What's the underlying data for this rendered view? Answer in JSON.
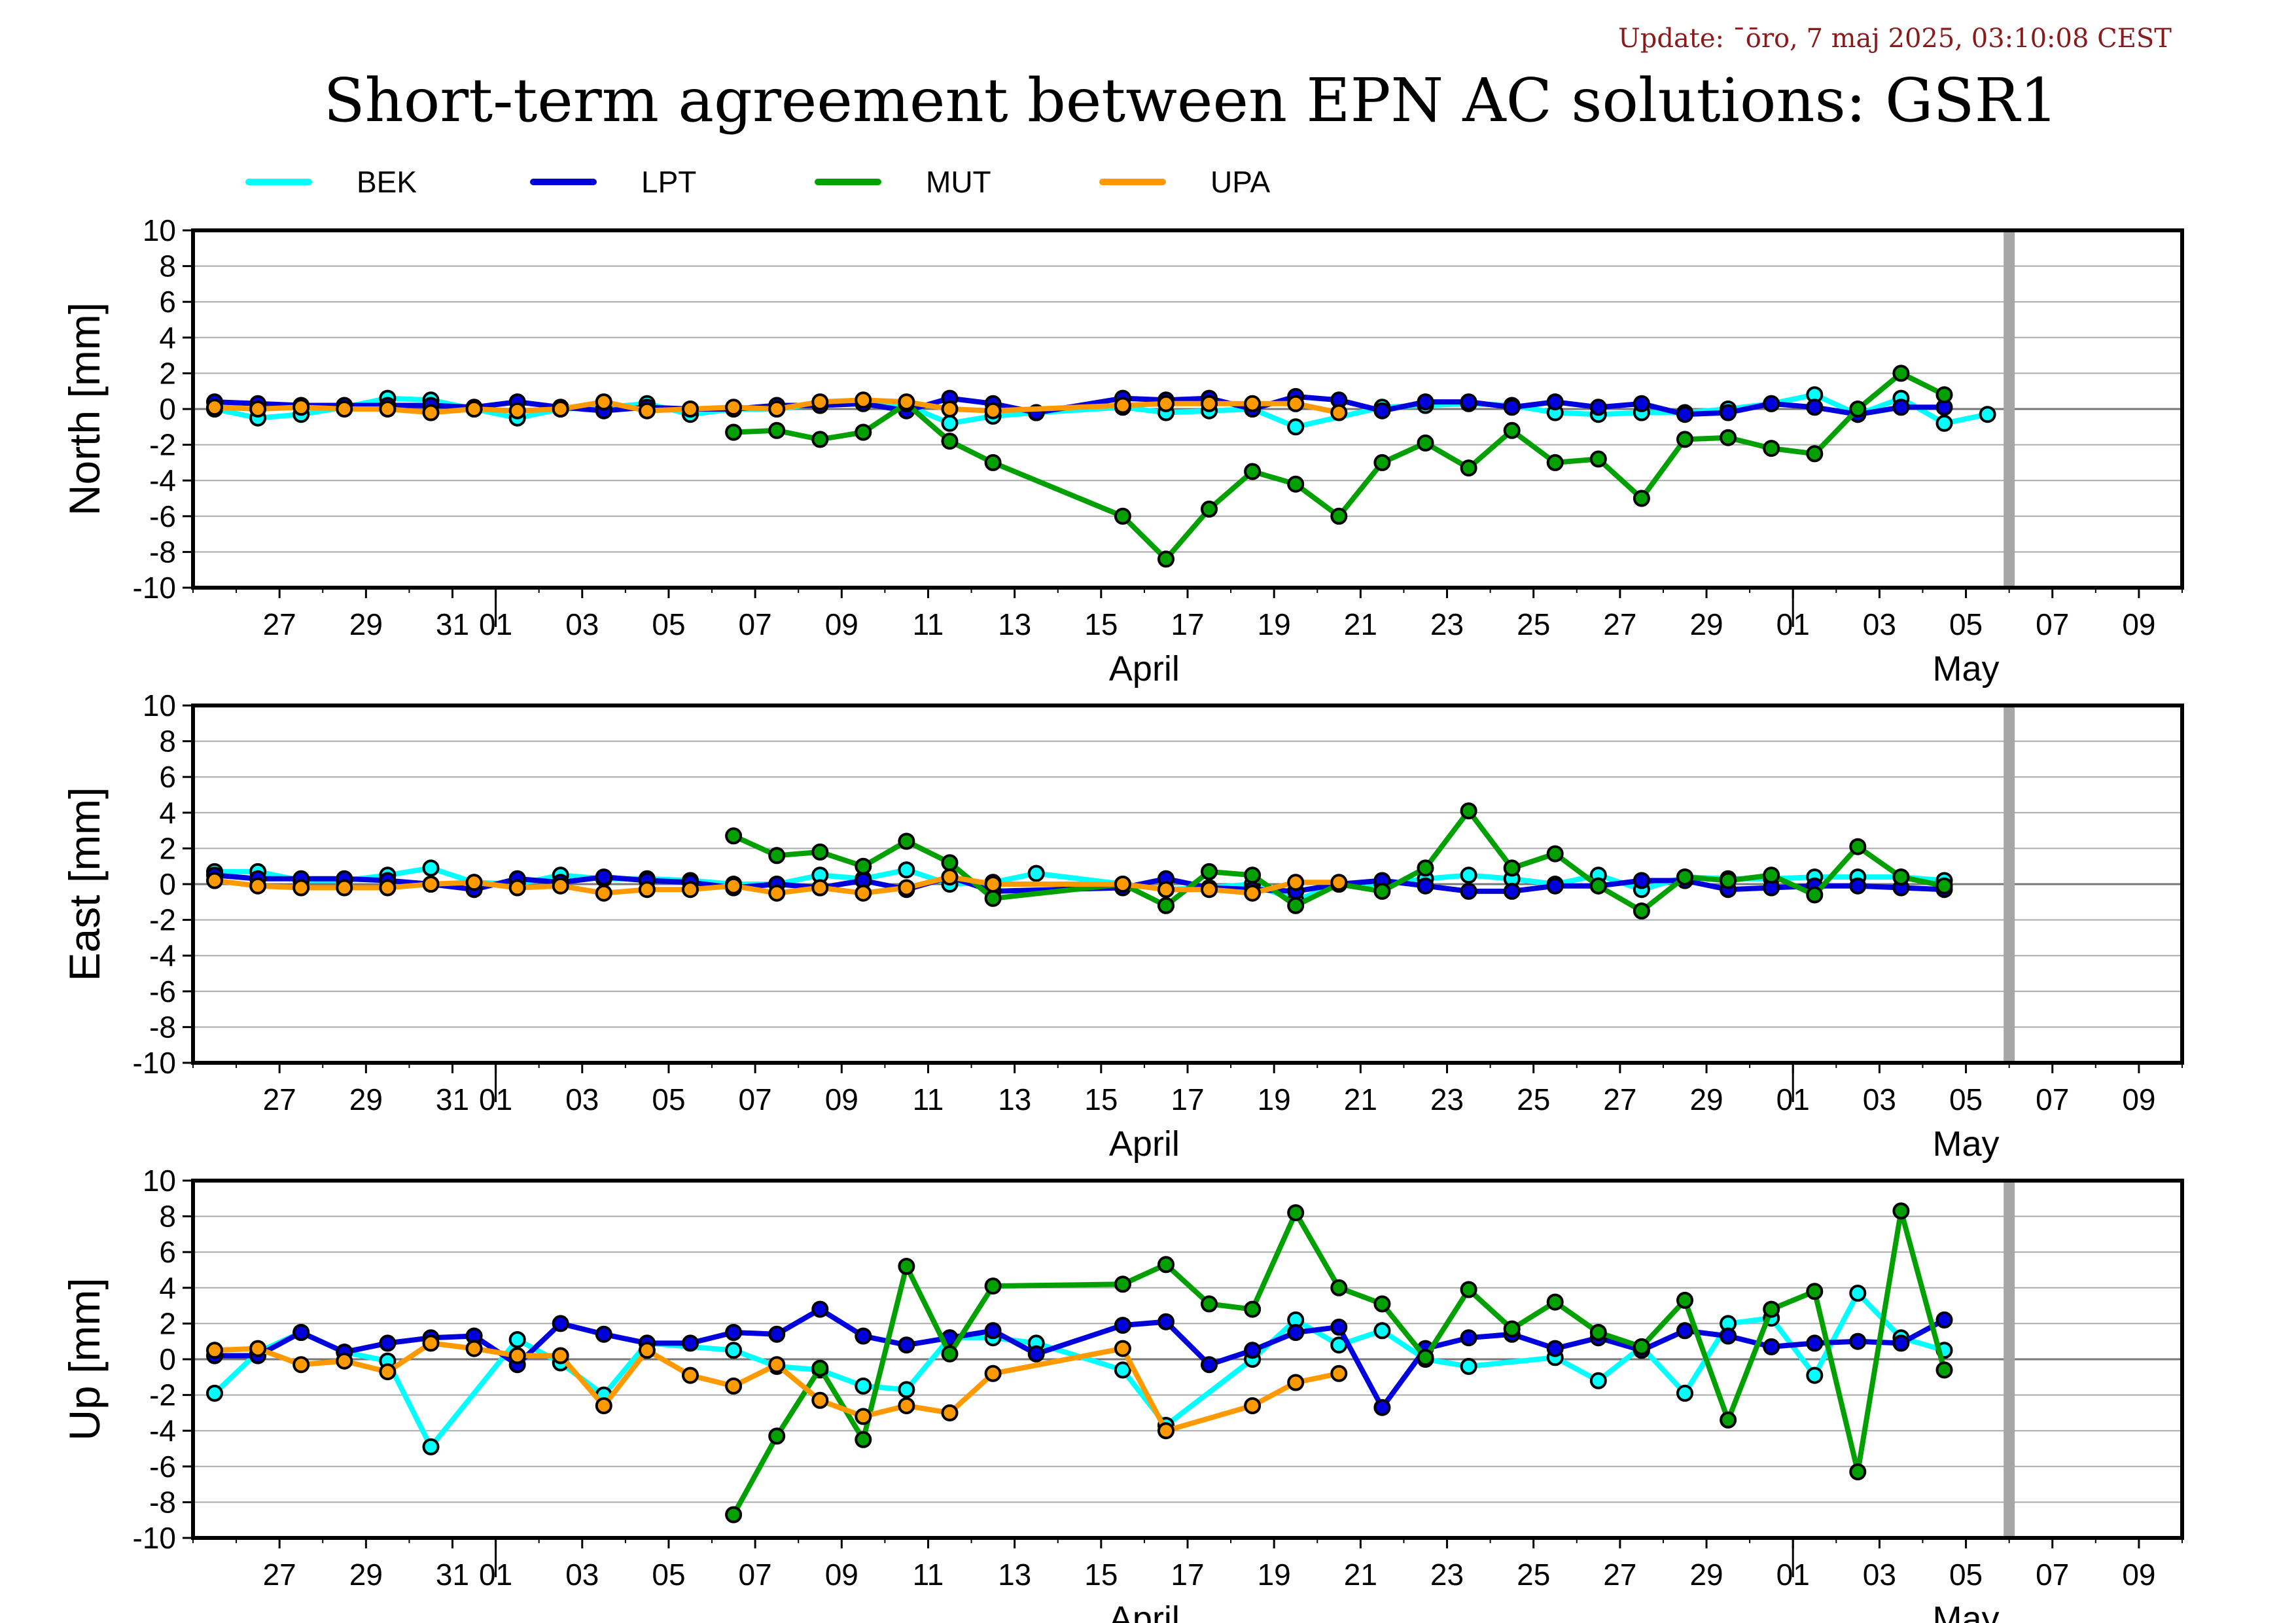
{
  "header": {
    "update": "Update: ¯ōro, 7 maj 2025, 03:10:08 CEST",
    "title": "Short-term agreement between EPN AC solutions: GSR1"
  },
  "chart_data": {
    "type": "line",
    "x_unit": "date",
    "xlim": [
      "2025-03-25",
      "2025-05-10"
    ],
    "ylim": [
      -10,
      10
    ],
    "yticks": [
      -10,
      -8,
      -6,
      -4,
      -2,
      0,
      2,
      4,
      6,
      8,
      10
    ],
    "grid": true,
    "legend_placement": "top",
    "xtick_labels": [
      {
        "x": "2025-03-27",
        "label": "27"
      },
      {
        "x": "2025-03-29",
        "label": "29"
      },
      {
        "x": "2025-03-31",
        "label": "31"
      },
      {
        "x": "2025-04-01",
        "label": "01"
      },
      {
        "x": "2025-04-03",
        "label": "03"
      },
      {
        "x": "2025-04-05",
        "label": "05"
      },
      {
        "x": "2025-04-07",
        "label": "07"
      },
      {
        "x": "2025-04-09",
        "label": "09"
      },
      {
        "x": "2025-04-11",
        "label": "11"
      },
      {
        "x": "2025-04-13",
        "label": "13"
      },
      {
        "x": "2025-04-15",
        "label": "15"
      },
      {
        "x": "2025-04-17",
        "label": "17"
      },
      {
        "x": "2025-04-19",
        "label": "19"
      },
      {
        "x": "2025-04-21",
        "label": "21"
      },
      {
        "x": "2025-04-23",
        "label": "23"
      },
      {
        "x": "2025-04-25",
        "label": "25"
      },
      {
        "x": "2025-04-27",
        "label": "27"
      },
      {
        "x": "2025-04-29",
        "label": "29"
      },
      {
        "x": "2025-05-01",
        "label": "01"
      },
      {
        "x": "2025-05-03",
        "label": "03"
      },
      {
        "x": "2025-05-05",
        "label": "05"
      },
      {
        "x": "2025-05-07",
        "label": "07"
      },
      {
        "x": "2025-05-09",
        "label": "09"
      }
    ],
    "month_labels": [
      {
        "x": "2025-04-16",
        "label": "April"
      },
      {
        "x": "2025-05-05",
        "label": "May"
      }
    ],
    "month_boundaries": [
      "2025-04-01",
      "2025-05-01"
    ],
    "current_marker": "2025-05-06",
    "series_styles": [
      {
        "name": "BEK",
        "color": "#00ffff"
      },
      {
        "name": "LPT",
        "color": "#0000dd"
      },
      {
        "name": "MUT",
        "color": "#00a000"
      },
      {
        "name": "UPA",
        "color": "#ff9900"
      }
    ],
    "start_date": "2025-03-25",
    "panels": [
      {
        "ylabel": "North [mm]",
        "series": [
          {
            "name": "BEK",
            "values": [
              0.0,
              -0.5,
              -0.3,
              0.1,
              0.6,
              0.5,
              0.0,
              -0.5,
              0.0,
              0.1,
              0.3,
              -0.3,
              0.0,
              0.0,
              0.3,
              0.4,
              0.2,
              -0.8,
              -0.4,
              -0.2,
              null,
              0.1,
              -0.2,
              -0.1,
              0.0,
              -1.0,
              null,
              0.1,
              0.2,
              0.3,
              0.2,
              -0.2,
              -0.3,
              -0.2,
              -0.2,
              0.0,
              0.3,
              0.8,
              -0.3,
              0.6,
              -0.8,
              -0.3
            ]
          },
          {
            "name": "LPT",
            "values": [
              0.4,
              0.3,
              0.2,
              0.2,
              0.2,
              0.2,
              0.1,
              0.4,
              0.1,
              -0.1,
              0.1,
              0.0,
              0.0,
              0.2,
              0.2,
              0.3,
              -0.1,
              0.6,
              0.3,
              -0.2,
              null,
              0.6,
              0.5,
              0.6,
              0.0,
              0.7,
              0.5,
              -0.1,
              0.4,
              0.4,
              0.1,
              0.4,
              0.1,
              0.3,
              -0.3,
              -0.2,
              0.3,
              0.1,
              -0.3,
              0.1,
              0.1
            ]
          },
          {
            "name": "MUT",
            "values": [
              null,
              null,
              null,
              null,
              null,
              null,
              null,
              null,
              null,
              null,
              null,
              null,
              -1.3,
              -1.2,
              -1.7,
              -1.3,
              0.3,
              -1.8,
              -3.0,
              null,
              null,
              -6.0,
              -8.4,
              -5.6,
              -3.5,
              -4.2,
              -6.0,
              -3.0,
              -1.9,
              -3.3,
              -1.2,
              -3.0,
              -2.8,
              -5.0,
              -1.7,
              -1.6,
              -2.2,
              -2.5,
              0.0,
              2.0,
              0.8
            ]
          },
          {
            "name": "UPA",
            "values": [
              0.1,
              0.0,
              0.1,
              0.0,
              0.0,
              -0.2,
              0.0,
              -0.1,
              0.0,
              0.4,
              -0.1,
              0.0,
              0.1,
              0.0,
              0.4,
              0.5,
              0.4,
              0.0,
              -0.1,
              null,
              null,
              0.2,
              0.3,
              0.3,
              0.3,
              0.3,
              -0.2
            ]
          }
        ]
      },
      {
        "ylabel": "East [mm]",
        "series": [
          {
            "name": "BEK",
            "values": [
              0.7,
              0.7,
              0.2,
              0.2,
              0.5,
              0.9,
              0.1,
              0.0,
              0.5,
              0.3,
              0.3,
              0.2,
              0.0,
              0.0,
              0.5,
              0.3,
              0.8,
              0.0,
              0.1,
              0.6,
              null,
              0.0,
              -0.3,
              -0.2,
              0.0,
              -0.9,
              0.0,
              0.0,
              0.3,
              0.5,
              0.3,
              0.0,
              0.5,
              -0.3,
              0.4,
              0.3,
              0.3,
              0.4,
              0.4,
              0.4,
              0.2
            ]
          },
          {
            "name": "LPT",
            "values": [
              0.5,
              0.3,
              0.3,
              0.3,
              0.2,
              0.0,
              -0.3,
              0.3,
              0.1,
              0.4,
              0.2,
              0.1,
              -0.2,
              0.0,
              -0.2,
              0.2,
              -0.3,
              0.4,
              -0.4,
              null,
              null,
              -0.2,
              0.3,
              -0.2,
              -0.3,
              -0.4,
              0.0,
              0.2,
              -0.1,
              -0.4,
              -0.4,
              -0.1,
              -0.1,
              0.2,
              0.2,
              -0.3,
              -0.2,
              -0.1,
              -0.1,
              -0.2,
              -0.3
            ]
          },
          {
            "name": "MUT",
            "values": [
              null,
              null,
              null,
              null,
              null,
              null,
              null,
              null,
              null,
              null,
              null,
              null,
              2.7,
              1.6,
              1.8,
              1.0,
              2.4,
              1.2,
              -0.8,
              null,
              null,
              0.0,
              -1.2,
              0.7,
              0.5,
              -1.2,
              0.0,
              -0.4,
              0.9,
              4.1,
              0.9,
              1.7,
              -0.1,
              -1.5,
              0.4,
              0.2,
              0.5,
              -0.6,
              2.1,
              0.4,
              -0.1
            ]
          },
          {
            "name": "UPA",
            "values": [
              0.2,
              -0.1,
              -0.2,
              -0.2,
              -0.2,
              0.0,
              0.1,
              -0.2,
              -0.1,
              -0.5,
              -0.3,
              -0.3,
              -0.1,
              -0.5,
              -0.2,
              -0.5,
              -0.2,
              0.4,
              0.0,
              null,
              null,
              0.0,
              -0.3,
              -0.3,
              -0.5,
              0.1,
              0.1
            ]
          }
        ]
      },
      {
        "ylabel": "Up [mm]",
        "series": [
          {
            "name": "BEK",
            "values": [
              -1.9,
              0.4,
              1.5,
              0.4,
              -0.1,
              -4.9,
              null,
              1.1,
              -0.2,
              -2.0,
              0.9,
              null,
              0.5,
              -0.4,
              -0.6,
              -1.5,
              -1.7,
              1.2,
              1.2,
              0.9,
              null,
              -0.6,
              -3.7,
              null,
              0.0,
              2.2,
              0.8,
              1.6,
              0.0,
              -0.4,
              null,
              0.1,
              -1.2,
              0.7,
              -1.9,
              2.0,
              2.3,
              -0.9,
              3.7,
              1.2,
              0.5
            ]
          },
          {
            "name": "LPT",
            "values": [
              0.2,
              0.2,
              1.5,
              0.4,
              0.9,
              1.2,
              1.3,
              -0.3,
              2.0,
              1.4,
              0.9,
              0.9,
              1.5,
              1.4,
              2.8,
              1.3,
              0.8,
              1.2,
              1.6,
              0.3,
              null,
              1.9,
              2.1,
              -0.3,
              0.5,
              1.5,
              1.8,
              -2.7,
              0.6,
              1.2,
              1.4,
              0.6,
              1.2,
              0.5,
              1.6,
              1.3,
              0.7,
              0.9,
              1.0,
              0.9,
              2.2
            ]
          },
          {
            "name": "MUT",
            "values": [
              null,
              null,
              null,
              null,
              null,
              null,
              null,
              null,
              null,
              null,
              null,
              null,
              -8.7,
              -4.3,
              -0.5,
              -4.5,
              5.2,
              0.3,
              4.1,
              null,
              null,
              4.2,
              5.3,
              3.1,
              2.8,
              8.2,
              4.0,
              3.1,
              0.1,
              3.9,
              1.7,
              3.2,
              1.5,
              0.7,
              3.3,
              -3.4,
              2.8,
              3.8,
              -6.3,
              8.3,
              -0.6
            ]
          },
          {
            "name": "UPA",
            "values": [
              0.5,
              0.6,
              -0.3,
              -0.1,
              -0.7,
              0.9,
              0.6,
              0.2,
              0.2,
              -2.6,
              0.5,
              -0.9,
              -1.5,
              -0.3,
              -2.3,
              -3.2,
              -2.6,
              -3.0,
              -0.8,
              null,
              null,
              0.6,
              -4.0,
              null,
              -2.6,
              -1.3,
              -0.8
            ]
          }
        ]
      }
    ]
  }
}
